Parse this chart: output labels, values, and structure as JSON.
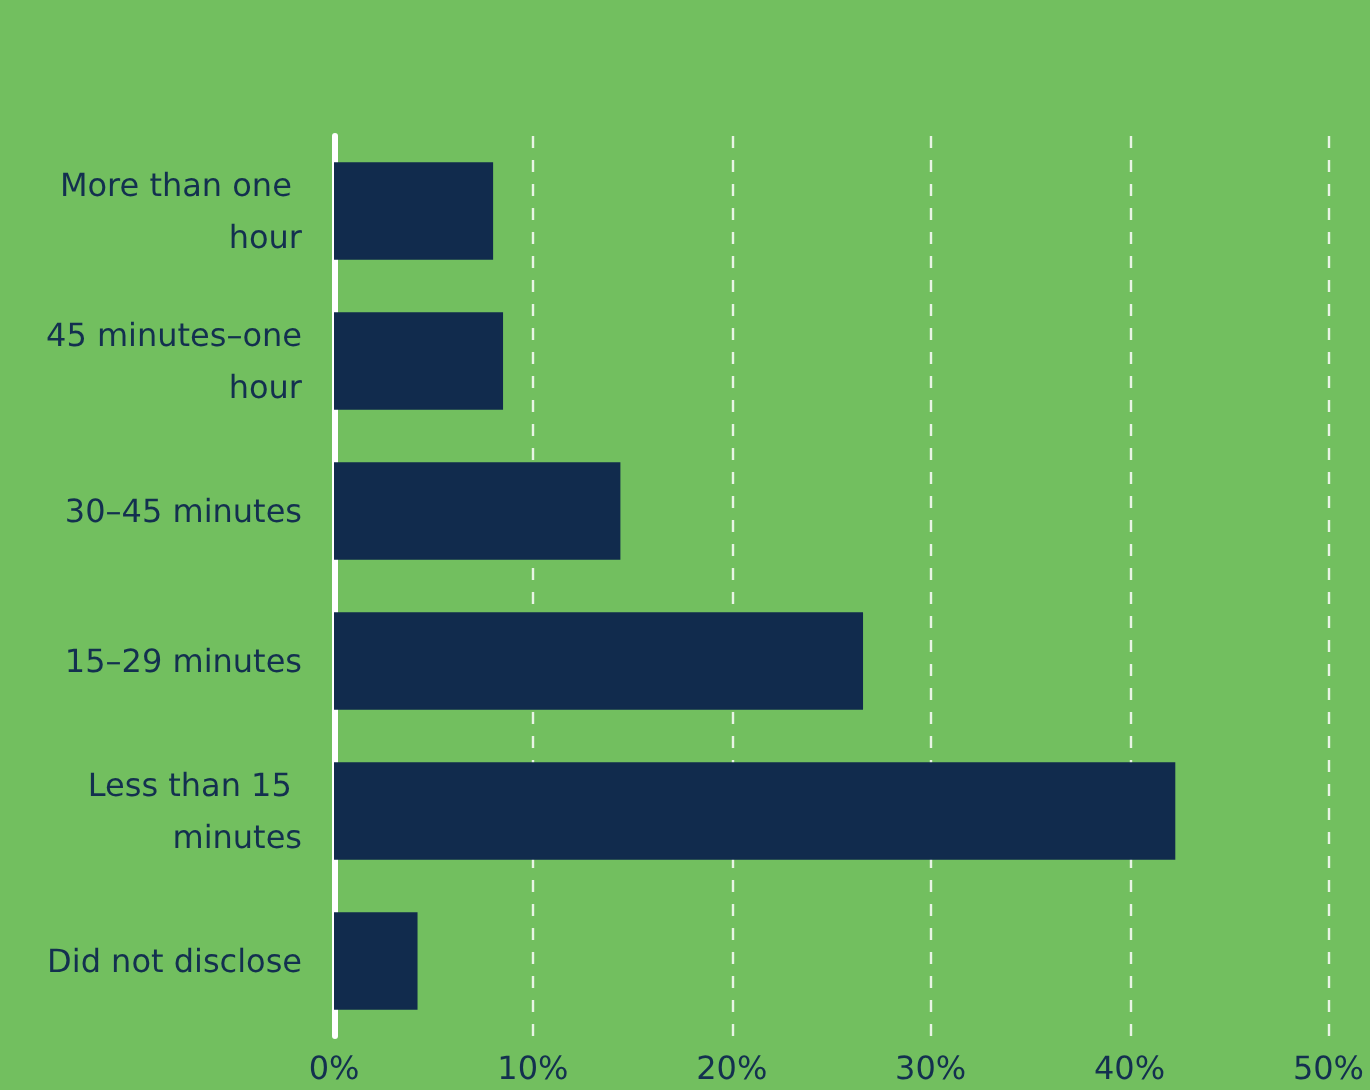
{
  "chart_data": {
    "type": "bar",
    "orientation": "horizontal",
    "categories": [
      "More than one hour",
      "45 minutes–one hour",
      "30–45 minutes",
      "15–29 minutes",
      "Less than 15 minutes",
      "Did not disclose"
    ],
    "values": [
      8.0,
      8.5,
      14.4,
      26.6,
      42.3,
      4.2
    ],
    "color": "#112b4d",
    "xlim": [
      0,
      50
    ],
    "xticks": [
      {
        "value": 0,
        "label": "0%"
      },
      {
        "value": 10,
        "label": "10%"
      },
      {
        "value": 20,
        "label": "20%"
      },
      {
        "value": 30,
        "label": "30%"
      },
      {
        "value": 40,
        "label": "40%"
      },
      {
        "value": 50,
        "label": "50%"
      }
    ],
    "grid": "x"
  }
}
